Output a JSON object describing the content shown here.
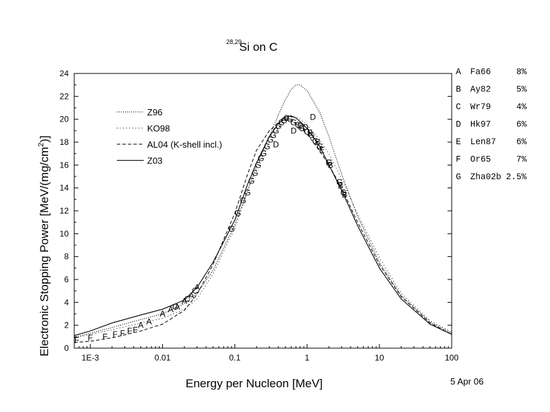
{
  "chart_data": {
    "type": "line",
    "title_sup": "28,29",
    "title_main": "Si on C",
    "xlabel": "Energy per Nucleon [MeV]",
    "ylabel_main": "Electronic Stopping Power [MeV/(mg/cm",
    "ylabel_sup": "2",
    "ylabel_end": ")]",
    "date": "5 Apr 06",
    "xscale": "log",
    "xlim": [
      0.0006,
      100
    ],
    "ylim": [
      0,
      24
    ],
    "x_ticks": [
      {
        "v": 0.001,
        "label": "1E-3"
      },
      {
        "v": 0.01,
        "label": "0.01"
      },
      {
        "v": 0.1,
        "label": "0.1"
      },
      {
        "v": 1,
        "label": "1"
      },
      {
        "v": 10,
        "label": "10"
      },
      {
        "v": 100,
        "label": "100"
      }
    ],
    "y_ticks": [
      0,
      2,
      4,
      6,
      8,
      10,
      12,
      14,
      16,
      18,
      20,
      22,
      24
    ],
    "series": [
      {
        "name": "Z96",
        "dash": "1.2 1.8",
        "points": [
          [
            0.0006,
            0.95
          ],
          [
            0.001,
            1.3
          ],
          [
            0.002,
            1.8
          ],
          [
            0.005,
            2.5
          ],
          [
            0.01,
            3.0
          ],
          [
            0.02,
            3.9
          ],
          [
            0.03,
            4.8
          ],
          [
            0.05,
            6.8
          ],
          [
            0.1,
            10.8
          ],
          [
            0.15,
            13.8
          ],
          [
            0.2,
            15.9
          ],
          [
            0.3,
            18.5
          ],
          [
            0.4,
            20.4
          ],
          [
            0.5,
            21.7
          ],
          [
            0.6,
            22.6
          ],
          [
            0.7,
            23.0
          ],
          [
            0.8,
            23.0
          ],
          [
            1,
            22.5
          ],
          [
            1.5,
            20.6
          ],
          [
            2,
            18.5
          ],
          [
            3,
            15.2
          ],
          [
            5,
            11.5
          ],
          [
            10,
            7.5
          ],
          [
            20,
            4.6
          ],
          [
            50,
            2.3
          ],
          [
            100,
            1.3
          ]
        ]
      },
      {
        "name": "KO98",
        "dash": "1 3.5",
        "points": [
          [
            0.0006,
            0.9
          ],
          [
            0.001,
            1.2
          ],
          [
            0.002,
            1.6
          ],
          [
            0.005,
            2.2
          ],
          [
            0.01,
            2.6
          ],
          [
            0.02,
            3.4
          ],
          [
            0.03,
            4.3
          ],
          [
            0.05,
            6.5
          ],
          [
            0.1,
            10.5
          ],
          [
            0.15,
            13.7
          ],
          [
            0.2,
            15.8
          ],
          [
            0.3,
            18.0
          ],
          [
            0.4,
            19.2
          ],
          [
            0.5,
            19.9
          ],
          [
            0.6,
            20.2
          ],
          [
            0.7,
            20.2
          ],
          [
            0.8,
            20.0
          ],
          [
            1,
            19.5
          ],
          [
            1.5,
            18.2
          ],
          [
            2,
            17.0
          ],
          [
            3,
            14.8
          ],
          [
            5,
            11.7
          ],
          [
            10,
            7.9
          ],
          [
            20,
            4.8
          ],
          [
            50,
            2.4
          ],
          [
            100,
            1.4
          ]
        ]
      },
      {
        "name": "AL04 (K-shell incl.)",
        "dash": "5 3",
        "points": [
          [
            0.0006,
            0.5
          ],
          [
            0.001,
            0.6
          ],
          [
            0.002,
            0.9
          ],
          [
            0.005,
            1.5
          ],
          [
            0.01,
            2.1
          ],
          [
            0.02,
            3.3
          ],
          [
            0.03,
            4.7
          ],
          [
            0.05,
            7.3
          ],
          [
            0.1,
            11.8
          ],
          [
            0.15,
            15.2
          ],
          [
            0.2,
            17.3
          ],
          [
            0.3,
            19.0
          ],
          [
            0.4,
            19.7
          ],
          [
            0.5,
            20.0
          ],
          [
            0.6,
            19.9
          ],
          [
            0.7,
            19.6
          ],
          [
            0.8,
            19.3
          ],
          [
            1,
            18.7
          ],
          [
            1.5,
            17.2
          ],
          [
            2,
            16.0
          ],
          [
            3,
            14.0
          ],
          [
            5,
            11.0
          ],
          [
            10,
            7.3
          ],
          [
            20,
            4.5
          ],
          [
            50,
            2.2
          ],
          [
            100,
            1.2
          ]
        ]
      },
      {
        "name": "Z03",
        "dash": "",
        "points": [
          [
            0.0006,
            1.1
          ],
          [
            0.001,
            1.5
          ],
          [
            0.002,
            2.2
          ],
          [
            0.005,
            2.9
          ],
          [
            0.01,
            3.4
          ],
          [
            0.02,
            4.2
          ],
          [
            0.03,
            5.3
          ],
          [
            0.05,
            7.5
          ],
          [
            0.1,
            11.2
          ],
          [
            0.15,
            14.3
          ],
          [
            0.2,
            16.2
          ],
          [
            0.3,
            18.5
          ],
          [
            0.4,
            19.6
          ],
          [
            0.5,
            20.2
          ],
          [
            0.6,
            20.3
          ],
          [
            0.7,
            20.1
          ],
          [
            0.8,
            19.8
          ],
          [
            1,
            19.2
          ],
          [
            1.5,
            17.6
          ],
          [
            2,
            16.0
          ],
          [
            3,
            13.8
          ],
          [
            5,
            10.7
          ],
          [
            10,
            7.0
          ],
          [
            20,
            4.3
          ],
          [
            50,
            2.1
          ],
          [
            100,
            1.2
          ]
        ]
      }
    ],
    "references": [
      {
        "letter": "A",
        "name": "Fa66",
        "err": "8%"
      },
      {
        "letter": "B",
        "name": "Ay82",
        "err": "5%"
      },
      {
        "letter": "C",
        "name": "Wr79",
        "err": "4%"
      },
      {
        "letter": "D",
        "name": "Hk97",
        "err": "6%"
      },
      {
        "letter": "E",
        "name": "Len87",
        "err": "6%"
      },
      {
        "letter": "F",
        "name": "Or65",
        "err": "7%"
      },
      {
        "letter": "G",
        "name": "Zha02b",
        "err": "2.5%"
      }
    ],
    "markers": [
      {
        "l": "F",
        "x": 0.00065,
        "y": 0.7
      },
      {
        "l": "F",
        "x": 0.001,
        "y": 0.9
      },
      {
        "l": "F",
        "x": 0.0016,
        "y": 1.0
      },
      {
        "l": "F",
        "x": 0.0022,
        "y": 1.2
      },
      {
        "l": "F",
        "x": 0.0028,
        "y": 1.3
      },
      {
        "l": "F",
        "x": 0.0035,
        "y": 1.5
      },
      {
        "l": "F",
        "x": 0.0042,
        "y": 1.6
      },
      {
        "l": "A",
        "x": 0.005,
        "y": 2.0
      },
      {
        "l": "A",
        "x": 0.0065,
        "y": 2.3
      },
      {
        "l": "A",
        "x": 0.01,
        "y": 3.0
      },
      {
        "l": "A",
        "x": 0.013,
        "y": 3.4
      },
      {
        "l": "A",
        "x": 0.016,
        "y": 3.6
      },
      {
        "l": "A",
        "x": 0.02,
        "y": 4.1
      },
      {
        "l": "A",
        "x": 0.025,
        "y": 4.6
      },
      {
        "l": "A",
        "x": 0.03,
        "y": 5.3
      },
      {
        "l": "C",
        "x": 0.015,
        "y": 3.6
      },
      {
        "l": "C",
        "x": 0.022,
        "y": 4.3
      },
      {
        "l": "C",
        "x": 0.028,
        "y": 5.0
      },
      {
        "l": "G",
        "x": 0.09,
        "y": 10.4
      },
      {
        "l": "G",
        "x": 0.11,
        "y": 11.8
      },
      {
        "l": "G",
        "x": 0.13,
        "y": 12.9
      },
      {
        "l": "G",
        "x": 0.15,
        "y": 13.6
      },
      {
        "l": "G",
        "x": 0.17,
        "y": 14.6
      },
      {
        "l": "G",
        "x": 0.19,
        "y": 15.3
      },
      {
        "l": "G",
        "x": 0.21,
        "y": 16.0
      },
      {
        "l": "G",
        "x": 0.23,
        "y": 16.6
      },
      {
        "l": "G",
        "x": 0.25,
        "y": 17.0
      },
      {
        "l": "G",
        "x": 0.28,
        "y": 17.6
      },
      {
        "l": "G",
        "x": 0.31,
        "y": 18.2
      },
      {
        "l": "G",
        "x": 0.34,
        "y": 18.6
      },
      {
        "l": "G",
        "x": 0.37,
        "y": 19.0
      },
      {
        "l": "G",
        "x": 0.4,
        "y": 19.4
      },
      {
        "l": "G",
        "x": 0.44,
        "y": 19.7
      },
      {
        "l": "G",
        "x": 0.48,
        "y": 19.9
      },
      {
        "l": "G",
        "x": 0.52,
        "y": 20.1
      },
      {
        "l": "G",
        "x": 0.58,
        "y": 20.0
      },
      {
        "l": "G",
        "x": 0.65,
        "y": 19.7
      },
      {
        "l": "G",
        "x": 0.75,
        "y": 19.5
      },
      {
        "l": "G",
        "x": 0.85,
        "y": 19.2
      },
      {
        "l": "G",
        "x": 1.0,
        "y": 18.9
      },
      {
        "l": "G",
        "x": 1.15,
        "y": 18.6
      },
      {
        "l": "G",
        "x": 1.3,
        "y": 18.1
      },
      {
        "l": "G",
        "x": 1.5,
        "y": 17.6
      },
      {
        "l": "G",
        "x": 2.0,
        "y": 16.2
      },
      {
        "l": "G",
        "x": 2.8,
        "y": 14.5
      },
      {
        "l": "G",
        "x": 3.2,
        "y": 13.6
      },
      {
        "l": "D",
        "x": 0.37,
        "y": 17.8
      },
      {
        "l": "D",
        "x": 0.65,
        "y": 19.0
      },
      {
        "l": "D",
        "x": 0.8,
        "y": 19.4
      },
      {
        "l": "D",
        "x": 0.95,
        "y": 19.3
      },
      {
        "l": "D",
        "x": 1.2,
        "y": 20.2
      },
      {
        "l": "B",
        "x": 1.1,
        "y": 18.8
      },
      {
        "l": "B",
        "x": 1.4,
        "y": 18.0
      },
      {
        "l": "B",
        "x": 2.1,
        "y": 16.0
      },
      {
        "l": "B",
        "x": 2.9,
        "y": 14.2
      },
      {
        "l": "B",
        "x": 3.3,
        "y": 13.4
      },
      {
        "l": "E",
        "x": 1.6,
        "y": 17.3
      },
      {
        "l": "E",
        "x": 2.0,
        "y": 16.2
      }
    ]
  }
}
